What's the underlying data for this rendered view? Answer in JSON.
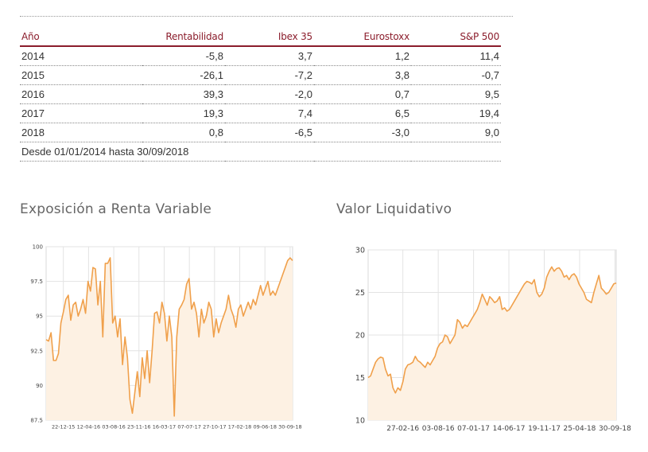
{
  "table": {
    "headers": [
      "Año",
      "Rentabilidad",
      "Ibex 35",
      "Eurostoxx",
      "S&P 500"
    ],
    "rows": [
      [
        "2014",
        "-5,8",
        "3,7",
        "1,2",
        "11,4"
      ],
      [
        "2015",
        "-26,1",
        "-7,2",
        "3,8",
        "-0,7"
      ],
      [
        "2016",
        "39,3",
        "-2,0",
        "0,7",
        "9,5"
      ],
      [
        "2017",
        "19,3",
        "7,4",
        "6,5",
        "19,4"
      ],
      [
        "2018",
        "0,8",
        "-6,5",
        "-3,0",
        "9,0"
      ]
    ],
    "footnote": "Desde 01/01/2014 hasta 30/09/2018"
  },
  "colors": {
    "line": "#f0a04b",
    "area": "#fdf1e3",
    "grid": "#e3e3e3",
    "header": "#8b1d2c"
  },
  "chart_data": [
    {
      "type": "area",
      "title": "Exposición a Renta Variable",
      "xlabel": "",
      "ylabel": "",
      "ylim": [
        87.5,
        100
      ],
      "yticks": [
        "100",
        "97.5",
        "95",
        "92.5",
        "90",
        "87.5"
      ],
      "xticks": [
        "22-12-15",
        "12-04-16",
        "03-08-16",
        "23-11-16",
        "16-03-17",
        "07-07-17",
        "27-10-17",
        "17-02-18",
        "09-06-18",
        "30-09-18"
      ],
      "grid": true,
      "x": [
        0,
        1,
        2,
        3,
        4,
        5,
        6,
        7,
        8,
        9,
        10,
        11,
        12,
        13,
        14,
        15,
        16,
        17,
        18,
        19,
        20,
        21,
        22,
        23,
        24,
        25,
        26,
        27,
        28,
        29,
        30,
        31,
        32,
        33,
        34,
        35,
        36,
        37,
        38,
        39,
        40,
        41,
        42,
        43,
        44,
        45,
        46,
        47,
        48,
        49,
        50,
        51,
        52,
        53,
        54,
        55,
        56,
        57,
        58,
        59,
        60,
        61,
        62,
        63,
        64,
        65,
        66,
        67,
        68,
        69,
        70,
        71,
        72,
        73,
        74,
        75,
        76,
        77,
        78,
        79,
        80,
        81,
        82,
        83,
        84,
        85,
        86,
        87,
        88,
        89,
        90,
        91,
        92,
        93,
        94,
        95,
        96,
        97,
        98,
        99,
        100
      ],
      "values": [
        93.3,
        93.2,
        93.8,
        91.8,
        91.8,
        92.3,
        94.5,
        95.3,
        96.2,
        96.5,
        94.7,
        95.8,
        96.0,
        95.0,
        95.5,
        96.2,
        95.2,
        97.5,
        96.8,
        98.5,
        98.4,
        95.8,
        97.5,
        93.5,
        98.8,
        98.8,
        99.2,
        94.5,
        95.0,
        93.5,
        94.8,
        91.5,
        93.5,
        92.0,
        89.0,
        88.0,
        89.5,
        91.0,
        89.2,
        92.0,
        90.5,
        92.5,
        90.2,
        92.5,
        95.2,
        95.3,
        94.5,
        96.0,
        95.2,
        93.2,
        95.0,
        93.5,
        87.8,
        93.5,
        95.5,
        95.8,
        96.2,
        97.3,
        97.7,
        95.5,
        96.0,
        95.2,
        93.5,
        95.5,
        94.5,
        95.0,
        96.0,
        95.5,
        93.5,
        94.8,
        93.8,
        94.5,
        95.0,
        95.5,
        96.5,
        95.5,
        95.0,
        94.2,
        95.5,
        95.8,
        95.0,
        95.5,
        96.0,
        95.5,
        96.2,
        95.8,
        96.5,
        97.2,
        96.5,
        97.0,
        97.5,
        96.5,
        96.8,
        96.5,
        97.0,
        97.5,
        98.0,
        98.5,
        99.0,
        99.2,
        99.0
      ]
    },
    {
      "type": "area",
      "title": "Valor Liquidativo",
      "xlabel": "",
      "ylabel": "",
      "ylim": [
        10,
        30
      ],
      "yticks": [
        "30",
        "25",
        "20",
        "15",
        "10"
      ],
      "xticks": [
        "27-02-16",
        "03-08-16",
        "07-01-17",
        "14-06-17",
        "19-11-17",
        "25-04-18",
        "30-09-18"
      ],
      "grid": true,
      "x": [
        0,
        1,
        2,
        3,
        4,
        5,
        6,
        7,
        8,
        9,
        10,
        11,
        12,
        13,
        14,
        15,
        16,
        17,
        18,
        19,
        20,
        21,
        22,
        23,
        24,
        25,
        26,
        27,
        28,
        29,
        30,
        31,
        32,
        33,
        34,
        35,
        36,
        37,
        38,
        39,
        40,
        41,
        42,
        43,
        44,
        45,
        46,
        47,
        48,
        49,
        50,
        51,
        52,
        53,
        54,
        55,
        56,
        57,
        58,
        59,
        60,
        61,
        62,
        63,
        64,
        65,
        66,
        67,
        68,
        69,
        70,
        71,
        72,
        73,
        74,
        75,
        76,
        77,
        78,
        79,
        80,
        81,
        82,
        83,
        84,
        85,
        86,
        87,
        88,
        89,
        90,
        91,
        92,
        93,
        94,
        95,
        96,
        97,
        98,
        99,
        100
      ],
      "values": [
        15.0,
        15.2,
        16.0,
        16.8,
        17.2,
        17.4,
        17.3,
        16.0,
        15.2,
        15.4,
        13.8,
        13.2,
        13.8,
        13.5,
        14.5,
        16.0,
        16.5,
        16.6,
        16.8,
        17.5,
        17.0,
        16.8,
        16.5,
        16.2,
        16.8,
        16.5,
        17.0,
        17.5,
        18.5,
        19.0,
        19.2,
        20.0,
        19.8,
        19.0,
        19.5,
        20.0,
        21.8,
        21.5,
        20.8,
        21.2,
        21.0,
        21.5,
        22.0,
        22.5,
        23.0,
        23.8,
        24.8,
        24.2,
        23.5,
        24.5,
        24.2,
        23.8,
        24.0,
        24.5,
        23.0,
        23.2,
        22.8,
        23.0,
        23.5,
        24.0,
        24.5,
        25.0,
        25.5,
        26.0,
        26.3,
        26.2,
        26.0,
        26.5,
        25.0,
        24.5,
        24.8,
        25.5,
        26.8,
        27.5,
        28.0,
        27.5,
        27.8,
        27.9,
        27.5,
        26.8,
        27.0,
        26.5,
        27.0,
        27.2,
        26.8,
        26.0,
        25.5,
        25.0,
        24.2,
        24.0,
        23.8,
        25.0,
        26.0,
        27.0,
        25.5,
        25.2,
        24.8,
        25.0,
        25.5,
        26.0,
        26.1
      ]
    }
  ]
}
